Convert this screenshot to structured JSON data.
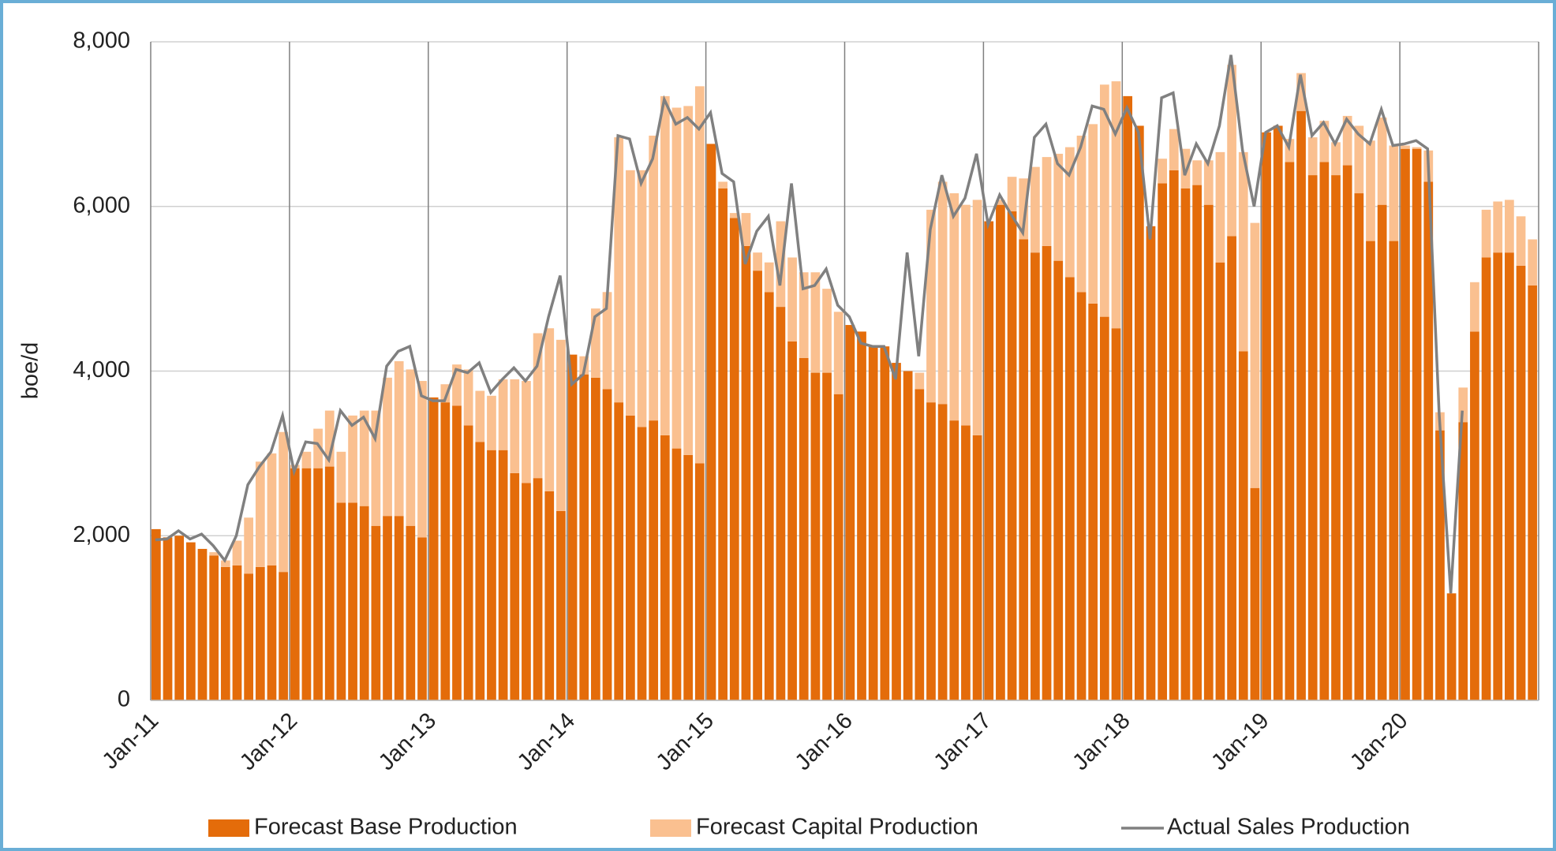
{
  "chart_data": {
    "type": "bar",
    "stacked": true,
    "categories": [
      "Jan-11",
      null,
      null,
      null,
      null,
      null,
      null,
      null,
      null,
      null,
      null,
      null,
      "Jan-12",
      null,
      null,
      null,
      null,
      null,
      null,
      null,
      null,
      null,
      null,
      null,
      "Jan-13",
      null,
      null,
      null,
      null,
      null,
      null,
      null,
      null,
      null,
      null,
      null,
      "Jan-14",
      null,
      null,
      null,
      null,
      null,
      null,
      null,
      null,
      null,
      null,
      null,
      "Jan-15",
      null,
      null,
      null,
      null,
      null,
      null,
      null,
      null,
      null,
      null,
      null,
      "Jan-16",
      null,
      null,
      null,
      null,
      null,
      null,
      null,
      null,
      null,
      null,
      null,
      "Jan-17",
      null,
      null,
      null,
      null,
      null,
      null,
      null,
      null,
      null,
      null,
      null,
      "Jan-18",
      null,
      null,
      null,
      null,
      null,
      null,
      null,
      null,
      null,
      null,
      null,
      "Jan-19",
      null,
      null,
      null,
      null,
      null,
      null,
      null,
      null,
      null,
      null,
      null,
      "Jan-20",
      null,
      null,
      null,
      null,
      null,
      null,
      null,
      null,
      null,
      null,
      null
    ],
    "series": [
      {
        "name": "Forecast Base Production",
        "color": "#e46c0a",
        "values": [
          2080,
          1980,
          2000,
          1920,
          1840,
          1760,
          1620,
          1640,
          1540,
          1620,
          1640,
          1560,
          2820,
          2820,
          2820,
          2840,
          2400,
          2400,
          2360,
          2120,
          2240,
          2240,
          2120,
          1980,
          3680,
          3620,
          3580,
          3340,
          3140,
          3040,
          3040,
          2760,
          2640,
          2700,
          2540,
          2300,
          4200,
          3960,
          3920,
          3780,
          3620,
          3460,
          3320,
          3400,
          3220,
          3060,
          2980,
          2880,
          6760,
          6220,
          5860,
          5520,
          5220,
          4960,
          4780,
          4360,
          4160,
          3980,
          3980,
          3720,
          4560,
          4480,
          4300,
          4300,
          4100,
          4000,
          3780,
          3620,
          3600,
          3400,
          3340,
          3220,
          5820,
          6020,
          5940,
          5600,
          5440,
          5520,
          5340,
          5140,
          4960,
          4820,
          4660,
          4520,
          7340,
          6980,
          5760,
          6280,
          6440,
          6220,
          6260,
          6020,
          5320,
          5640,
          4240,
          2580,
          6900,
          6980,
          6540,
          7160,
          6380,
          6540,
          6380,
          6500,
          6160,
          5580,
          6020,
          5580,
          6700,
          6700,
          6300,
          3280,
          1300,
          3380,
          4480,
          5380,
          5440,
          5440,
          5280,
          5040
        ]
      },
      {
        "name": "Forecast Capital Production",
        "color": "#fac090",
        "values": [
          0,
          0,
          0,
          0,
          0,
          40,
          80,
          300,
          680,
          1280,
          1360,
          1700,
          40,
          200,
          480,
          680,
          620,
          1060,
          1160,
          1400,
          1680,
          1880,
          1900,
          1900,
          0,
          220,
          500,
          680,
          620,
          660,
          860,
          1140,
          1240,
          1760,
          1980,
          2080,
          0,
          220,
          840,
          1180,
          3220,
          2980,
          3120,
          3460,
          4120,
          4140,
          4240,
          4580,
          0,
          80,
          60,
          400,
          220,
          360,
          1040,
          1020,
          1040,
          1220,
          1020,
          1000,
          0,
          0,
          0,
          0,
          0,
          0,
          200,
          2340,
          2700,
          2760,
          2680,
          2860,
          0,
          60,
          420,
          740,
          1040,
          1080,
          1300,
          1580,
          1900,
          2180,
          2820,
          3000,
          0,
          0,
          0,
          300,
          500,
          480,
          300,
          540,
          1340,
          2080,
          2420,
          3220,
          0,
          0,
          280,
          460,
          460,
          500,
          400,
          600,
          820,
          1220,
          1060,
          1160,
          40,
          20,
          380,
          220,
          0,
          420,
          600,
          580,
          620,
          640,
          600,
          560
        ]
      },
      {
        "name": "Actual Sales Production",
        "color": "#808080",
        "type": "line",
        "values": [
          1950,
          1960,
          2060,
          1960,
          2020,
          1880,
          1700,
          2000,
          2620,
          2840,
          3020,
          3460,
          2780,
          3140,
          3120,
          2920,
          3520,
          3340,
          3440,
          3180,
          4060,
          4240,
          4300,
          3700,
          3640,
          3640,
          4020,
          3980,
          4100,
          3740,
          3900,
          4040,
          3880,
          4060,
          4660,
          5160,
          3840,
          3960,
          4660,
          4760,
          6860,
          6820,
          6280,
          6580,
          7300,
          7000,
          7080,
          6940,
          7140,
          6400,
          6300,
          5300,
          5700,
          5880,
          5040,
          6280,
          5000,
          5040,
          5240,
          4800,
          4660,
          4340,
          4300,
          4300,
          3900,
          5440,
          4180,
          5720,
          6380,
          5880,
          6100,
          6640,
          5780,
          6140,
          5900,
          5680,
          6840,
          7000,
          6520,
          6380,
          6720,
          7220,
          7180,
          6880,
          7200,
          6900,
          5600,
          7320,
          7380,
          6380,
          6760,
          6520,
          6980,
          7840,
          6680,
          6000,
          6900,
          6980,
          6720,
          7600,
          6860,
          7020,
          6760,
          7060,
          6880,
          6760,
          7180,
          6740,
          6760,
          6800,
          6700,
          3480,
          1300,
          3520,
          null,
          null,
          null,
          null,
          null,
          null
        ]
      }
    ],
    "y_label": "boe/d",
    "ylim": [
      0,
      8000
    ],
    "yticks": [
      0,
      {
        "value": 2000,
        "label": "2,000"
      },
      {
        "value": 4000,
        "label": "4,000"
      },
      {
        "value": 6000,
        "label": "6,000"
      },
      {
        "value": 8000,
        "label": "8,000"
      }
    ],
    "grid": true,
    "legend": "bottom"
  }
}
